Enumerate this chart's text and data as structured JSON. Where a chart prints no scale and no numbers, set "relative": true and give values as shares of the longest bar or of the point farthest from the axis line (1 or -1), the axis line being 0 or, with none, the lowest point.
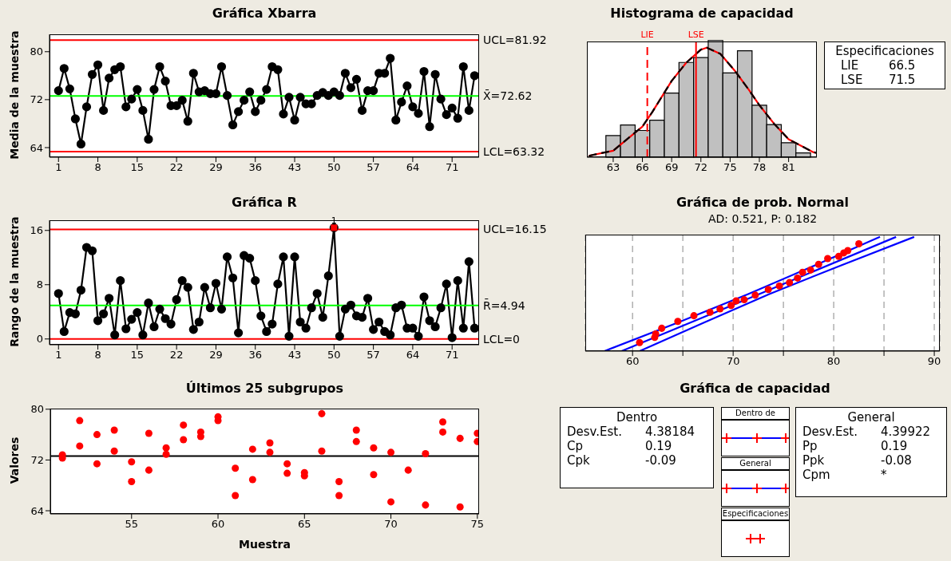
{
  "chart_data": [
    {
      "type": "line",
      "title": "Gráfica Xbarra",
      "ylabel": "Media de la muestra",
      "marker": "circle",
      "xlim": [
        -0.6,
        75.8
      ],
      "xticks": [
        1,
        8,
        15,
        22,
        29,
        36,
        43,
        50,
        57,
        64,
        71
      ],
      "ylim": [
        62.4,
        82.9
      ],
      "yticks": [
        64,
        72,
        80
      ],
      "x": [
        1,
        2,
        3,
        4,
        5,
        6,
        7,
        8,
        9,
        10,
        11,
        12,
        13,
        14,
        15,
        16,
        17,
        18,
        19,
        20,
        21,
        22,
        23,
        24,
        25,
        26,
        27,
        28,
        29,
        30,
        31,
        32,
        33,
        34,
        35,
        36,
        37,
        38,
        39,
        40,
        41,
        42,
        43,
        44,
        45,
        46,
        47,
        48,
        49,
        50,
        51,
        52,
        53,
        54,
        55,
        56,
        57,
        58,
        59,
        60,
        61,
        62,
        63,
        64,
        65,
        66,
        67,
        68,
        69,
        70,
        71,
        72,
        73,
        74,
        75
      ],
      "series": [
        {
          "color": "#000000",
          "values": [
            73.5,
            77.2,
            73.8,
            68.8,
            64.6,
            70.8,
            76.2,
            77.8,
            70.2,
            75.6,
            77.0,
            77.5,
            70.8,
            72.1,
            73.7,
            70.2,
            65.4,
            73.7,
            77.5,
            75.1,
            71.0,
            71.0,
            71.9,
            68.4,
            76.4,
            73.3,
            73.5,
            73.0,
            73.0,
            77.5,
            72.7,
            67.8,
            70.0,
            71.9,
            73.3,
            70.0,
            71.9,
            73.7,
            77.5,
            77.0,
            69.6,
            72.4,
            68.6,
            72.4,
            71.3,
            71.3,
            72.7,
            73.2,
            72.7,
            73.3,
            72.7,
            76.4,
            74.0,
            75.4,
            70.2,
            73.5,
            73.5,
            76.4,
            76.4,
            78.9,
            68.6,
            71.6,
            74.3,
            70.8,
            69.7,
            76.7,
            67.5,
            76.2,
            72.1,
            69.5,
            70.6,
            68.9,
            77.5,
            70.2,
            76.0
          ]
        }
      ],
      "ref_lines": [
        {
          "axis": "y",
          "value": 81.92,
          "label": "UCL=81.92",
          "color": "#ff0000"
        },
        {
          "axis": "y",
          "value": 72.62,
          "label": "X̄=72.62",
          "color": "#00ff00"
        },
        {
          "axis": "y",
          "value": 63.32,
          "label": "LCL=63.32",
          "color": "#ff0000"
        }
      ]
    },
    {
      "type": "histogram",
      "title": "Histograma de capacidad",
      "relative": true,
      "color": "#c0c0c0",
      "xlim": [
        60.3,
        83.9
      ],
      "xticks": [
        63,
        66,
        69,
        72,
        75,
        78,
        81
      ],
      "bins": [
        62.25,
        63.75,
        65.25,
        66.75,
        68.25,
        69.75,
        71.25,
        72.75,
        74.25,
        75.75,
        77.25,
        78.75,
        80.25,
        81.75,
        83.25
      ],
      "values": [
        0.185,
        0.276,
        0.229,
        0.317,
        0.549,
        0.812,
        0.854,
        1,
        0.722,
        0.912,
        0.446,
        0.28,
        0.124,
        0.037
      ],
      "series": [
        {
          "type": "line",
          "color": "#ff0000",
          "line_style": "solid",
          "x": [
            60.5,
            63,
            66,
            67,
            69,
            70.5,
            72,
            72.6,
            74,
            75.5,
            77,
            78,
            79.5,
            81,
            83.5,
            83.9
          ],
          "values": [
            0.012,
            0.056,
            0.263,
            0.385,
            0.654,
            0.81,
            0.922,
            0.939,
            0.885,
            0.739,
            0.568,
            0.446,
            0.288,
            0.154,
            0.044,
            0.037
          ]
        },
        {
          "type": "line",
          "color": "#000000",
          "line_style": "dashed",
          "x": [
            60.5,
            63,
            66,
            67,
            69,
            70.5,
            72,
            72.6,
            74,
            75.5,
            77,
            78,
            79.5,
            81,
            83.5,
            83.9
          ],
          "values": [
            0.012,
            0.056,
            0.263,
            0.385,
            0.654,
            0.81,
            0.922,
            0.939,
            0.885,
            0.739,
            0.568,
            0.446,
            0.288,
            0.154,
            0.044,
            0.037
          ]
        }
      ],
      "ref_lines": [
        {
          "axis": "x",
          "value": 66.5,
          "label": "LIE",
          "color": "#ff0000",
          "line_style": "dashed"
        },
        {
          "axis": "x",
          "value": 71.5,
          "label": "LSE",
          "color": "#ff0000",
          "line_style": "solid"
        }
      ],
      "annotations": [
        "Especificaciones",
        "LIE",
        "66.5",
        "LSE",
        "71.5"
      ]
    },
    {
      "type": "line",
      "title": "Gráfica R",
      "ylabel": "Rango de la muestra",
      "marker": "circle",
      "xlim": [
        -0.6,
        75.8
      ],
      "xticks": [
        1,
        8,
        15,
        22,
        29,
        36,
        43,
        50,
        57,
        64,
        71
      ],
      "ylim": [
        -0.85,
        17.5
      ],
      "yticks": [
        0,
        8,
        16
      ],
      "x": [
        1,
        2,
        3,
        4,
        5,
        6,
        7,
        8,
        9,
        10,
        11,
        12,
        13,
        14,
        15,
        16,
        17,
        18,
        19,
        20,
        21,
        22,
        23,
        24,
        25,
        26,
        27,
        28,
        29,
        30,
        31,
        32,
        33,
        34,
        35,
        36,
        37,
        38,
        39,
        40,
        41,
        42,
        43,
        44,
        45,
        46,
        47,
        48,
        49,
        50,
        51,
        52,
        53,
        54,
        55,
        56,
        57,
        58,
        59,
        60,
        61,
        62,
        63,
        64,
        65,
        66,
        67,
        68,
        69,
        70,
        71,
        72,
        73,
        74,
        75
      ],
      "series": [
        {
          "color": "#000000",
          "values": [
            6.7,
            1.1,
            3.9,
            3.7,
            7.2,
            13.5,
            13.0,
            2.7,
            3.7,
            6.0,
            0.6,
            8.6,
            1.5,
            2.9,
            3.9,
            0.6,
            5.3,
            1.8,
            4.4,
            3.0,
            2.2,
            5.8,
            8.6,
            7.6,
            1.4,
            2.5,
            7.6,
            4.6,
            8.2,
            4.4,
            12.1,
            9.0,
            0.9,
            12.3,
            11.9,
            8.6,
            3.4,
            1.1,
            2.2,
            8.1,
            12.1,
            0.4,
            12.1,
            2.5,
            1.6,
            4.6,
            6.7,
            3.2,
            9.3,
            16.4,
            0.4,
            4.4,
            5.0,
            3.4,
            3.2,
            6.0,
            1.4,
            2.5,
            1.1,
            0.6,
            4.6,
            5.0,
            1.6,
            1.6,
            0.4,
            6.2,
            2.7,
            1.8,
            4.6,
            8.1,
            0.2,
            8.6,
            1.6,
            11.4,
            1.6
          ]
        },
        {
          "type": "scatter",
          "color": "#ff0000",
          "marker": "square",
          "x": [
            50
          ],
          "values": [
            16.4
          ]
        }
      ],
      "ref_lines": [
        {
          "axis": "y",
          "value": 16.15,
          "label": "UCL=16.15",
          "color": "#ff0000"
        },
        {
          "axis": "y",
          "value": 4.94,
          "label": "R̄=4.94",
          "color": "#00ff00"
        },
        {
          "axis": "y",
          "value": 0,
          "label": "LCL=0",
          "color": "#ff0000"
        }
      ],
      "annotations": [
        {
          "text": "1",
          "x": 50,
          "y": 16.4
        }
      ]
    },
    {
      "type": "line",
      "title": "Gráfica de prob. Normal",
      "subtitle": "AD: 0.521, P: 0.182",
      "relative": true,
      "grid": "x",
      "marker": "none",
      "xlim": [
        55.3,
        90.55
      ],
      "xticks": [
        60,
        {
          "value": 65,
          "label": null
        },
        70,
        {
          "value": 75,
          "label": null
        },
        80,
        {
          "value": 85,
          "label": null
        },
        90
      ],
      "series": [
        {
          "type": "scatter",
          "marker": "circle",
          "color": "#ff0000",
          "x": [
            60.7,
            62.2,
            62.3,
            62.9,
            64.5,
            66.1,
            67.7,
            68.7,
            69.8,
            70.3,
            71.1,
            72.2,
            73.5,
            74.6,
            75.6,
            76.4,
            76.9,
            77.7,
            78.5,
            79.4,
            80.5,
            81.0,
            81.4,
            82.5
          ],
          "values": [
            0.075,
            0.12,
            0.15,
            0.2,
            0.26,
            0.31,
            0.34,
            0.37,
            0.4,
            0.44,
            0.45,
            0.49,
            0.54,
            0.57,
            0.6,
            0.64,
            0.69,
            0.71,
            0.76,
            0.81,
            0.83,
            0.86,
            0.88,
            0.94
          ]
        },
        {
          "color": "#0000ff",
          "x": [
            58.9,
            72.6,
            86.2
          ],
          "values": [
            0,
            0.5,
            1
          ]
        },
        {
          "color": "#0000ff",
          "x": [
            57.2,
            64.5,
            71.5,
            78.1,
            84.6
          ],
          "values": [
            0,
            0.25,
            0.5,
            0.75,
            1
          ]
        },
        {
          "color": "#0000ff",
          "x": [
            60.7,
            67.1,
            73.6,
            80.7,
            88.0
          ],
          "values": [
            0,
            0.25,
            0.5,
            0.75,
            1
          ]
        }
      ]
    },
    {
      "type": "scatter",
      "title": "Últimos 25 subgrupos",
      "xlabel": "Muestra",
      "ylabel": "Valores",
      "marker": "circle",
      "xlim": [
        50.3,
        75.1
      ],
      "xticks": [
        55,
        60,
        65,
        70,
        75
      ],
      "ylim": [
        63.5,
        80.1
      ],
      "yticks": [
        64,
        72,
        80
      ],
      "series": [
        {
          "color": "#ff0000",
          "x": [
            51,
            51,
            52,
            52,
            53,
            53,
            54,
            54,
            55,
            55,
            56,
            56,
            57,
            57,
            58,
            58,
            59,
            59,
            60,
            60,
            61,
            61,
            62,
            62,
            63,
            63,
            64,
            64,
            65,
            65,
            66,
            66,
            67,
            67,
            68,
            68,
            69,
            69,
            70,
            70,
            71,
            72,
            72,
            73,
            73,
            74,
            74,
            75,
            75
          ],
          "values": [
            72.8,
            72.3,
            78.2,
            74.2,
            76.0,
            71.4,
            76.7,
            73.4,
            71.7,
            68.6,
            76.2,
            70.4,
            73.9,
            72.9,
            77.5,
            75.2,
            76.4,
            75.7,
            78.8,
            78.2,
            70.7,
            66.4,
            73.7,
            68.9,
            74.7,
            73.2,
            71.4,
            69.9,
            70.0,
            69.5,
            79.3,
            73.4,
            68.6,
            66.4,
            76.7,
            74.9,
            73.9,
            69.7,
            73.2,
            65.4,
            70.4,
            73.0,
            64.9,
            78.0,
            76.4,
            75.4,
            64.6,
            76.2,
            74.9
          ]
        }
      ],
      "ref_lines": [
        {
          "axis": "y",
          "value": 72.62,
          "color": "#000000"
        }
      ]
    },
    {
      "type": "other",
      "title": "Gráfica de capacidad",
      "annotations": [
        "Dentro",
        "Desv.Est.",
        "4.38184",
        "Cp",
        "0.19",
        "Cpk",
        "-0.09",
        "Dentro de",
        "General",
        "Especificaciones",
        "General",
        "Desv.Est.",
        "4.39922",
        "Pp",
        "0.19",
        "Ppk",
        "-0.08",
        "Cpm",
        "*"
      ]
    }
  ]
}
